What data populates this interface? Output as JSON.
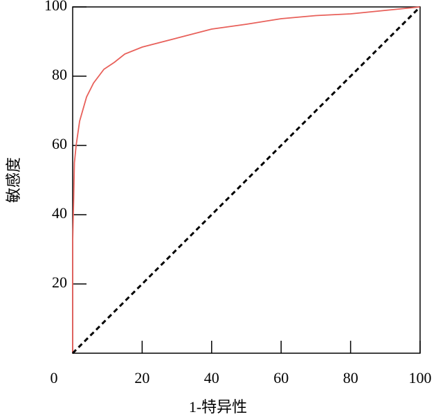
{
  "chart_data": {
    "type": "line",
    "x_label": "1-特异性",
    "y_label": "敏感度",
    "xlim": [
      0,
      100
    ],
    "ylim": [
      0,
      100
    ],
    "xticks": [
      0,
      20,
      40,
      60,
      80,
      100
    ],
    "yticks": [
      20,
      40,
      60,
      80,
      100
    ],
    "series": [
      {
        "color": "#e8605a",
        "dash": false,
        "x": [
          0,
          0,
          0.3,
          0.5,
          1,
          2,
          4,
          6,
          9,
          12,
          15,
          20,
          30,
          40,
          50,
          60,
          70,
          80,
          90,
          100
        ],
        "values": [
          0,
          32,
          45,
          55,
          60,
          67,
          74,
          78,
          82,
          84,
          86.4,
          88.4,
          91,
          93.6,
          95,
          96.6,
          97.5,
          98,
          99,
          100
        ]
      },
      {
        "color": "#000000",
        "dash": true,
        "x": [
          0,
          100
        ],
        "values": [
          0,
          100
        ]
      }
    ]
  }
}
